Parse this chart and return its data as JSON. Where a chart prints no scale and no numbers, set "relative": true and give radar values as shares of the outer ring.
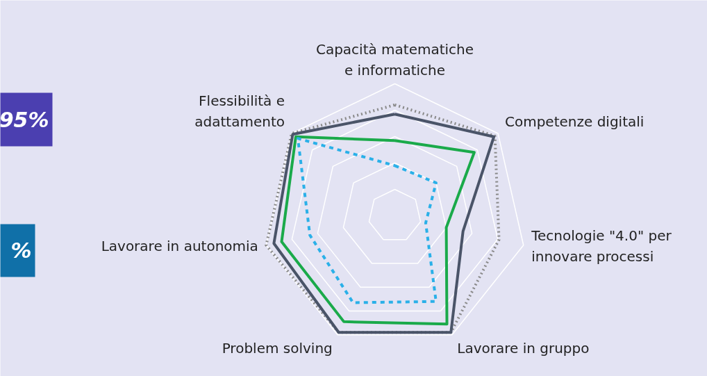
{
  "chart_data": {
    "type": "radar",
    "relative": true,
    "categories": [
      "Capacità matematiche e informatiche",
      "Competenze digitali",
      "Tecnologie \"4.0\" per innovare processi",
      "Lavorare in gruppo",
      "Problem solving",
      "Lavorare in autonomia",
      "Flessibilità e adattamento"
    ],
    "series": [
      {
        "color": "#8a8a8a",
        "line_style": "dotted",
        "values": [
          0.84,
          0.97,
          0.81,
          0.98,
          0.98,
          1.0,
          1.0
        ]
      },
      {
        "color": "#4a5468",
        "line_style": "solid",
        "values": [
          0.77,
          0.96,
          0.53,
          0.98,
          0.98,
          0.94,
          0.99
        ]
      },
      {
        "color": "#1aaa4a",
        "line_style": "solid",
        "values": [
          0.57,
          0.77,
          0.4,
          0.91,
          0.89,
          0.88,
          0.96
        ]
      },
      {
        "color": "#2ab0e8",
        "line_style": "dashed",
        "values": [
          0.38,
          0.4,
          0.24,
          0.72,
          0.73,
          0.66,
          0.94
        ]
      }
    ],
    "annotations": [
      "95%",
      "%"
    ],
    "grid": true
  }
}
